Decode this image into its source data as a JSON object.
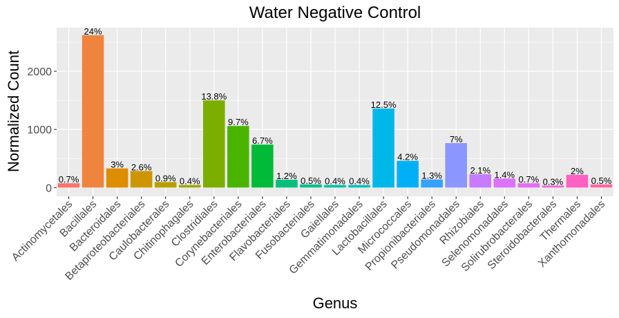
{
  "chart_data": {
    "type": "bar",
    "title": "Water Negative Control",
    "xlabel": "Genus",
    "ylabel": "Normalized Count",
    "ylim": [
      -150,
      2750
    ],
    "yticks": [
      0,
      1000,
      2000
    ],
    "grid": true,
    "legend": "none",
    "categories": [
      "Actinomycetales",
      "Bacillales",
      "Bacteroidales",
      "Betaproteobacteriales",
      "Caulobacterales",
      "Chitinophagales",
      "Clostridiales",
      "Corynebacteriales",
      "Enterobacteriales",
      "Flavobacteriales",
      "Fusobacteriales",
      "Gaiellales",
      "Gemmatimonadales",
      "Lactobacillales",
      "Micrococcales",
      "Propionibacteriales",
      "Pseudomonadales",
      "Rhizobiales",
      "Selenomonadales",
      "Solirubrobacterales",
      "Steroidobacterales",
      "Thermales",
      "Xanthomonadales"
    ],
    "values": [
      75,
      2620,
      330,
      285,
      95,
      45,
      1500,
      1060,
      740,
      135,
      55,
      45,
      45,
      1360,
      460,
      140,
      765,
      230,
      155,
      75,
      35,
      220,
      55
    ],
    "labels": [
      "0.7%",
      "24%",
      "3%",
      "2.6%",
      "0.9%",
      "0.4%",
      "13.8%",
      "9.7%",
      "6.7%",
      "1.2%",
      "0.5%",
      "0.4%",
      "0.4%",
      "12.5%",
      "4.2%",
      "1.3%",
      "7%",
      "2.1%",
      "1.4%",
      "0.7%",
      "0.3%",
      "2%",
      "0.5%"
    ],
    "colors": [
      "#F8766D",
      "#EF843F",
      "#DE8C00",
      "#CD9600",
      "#B79F00",
      "#9DA700",
      "#7CAE00",
      "#49B500",
      "#00BA38",
      "#00BF7D",
      "#00C08B",
      "#00BFA4",
      "#00BFC4",
      "#00B8E7",
      "#00B0F6",
      "#35A2FF",
      "#8C96FF",
      "#C77CFF",
      "#DC71FA",
      "#E76BF3",
      "#F264DB",
      "#FF61C3",
      "#FF67A4"
    ]
  }
}
